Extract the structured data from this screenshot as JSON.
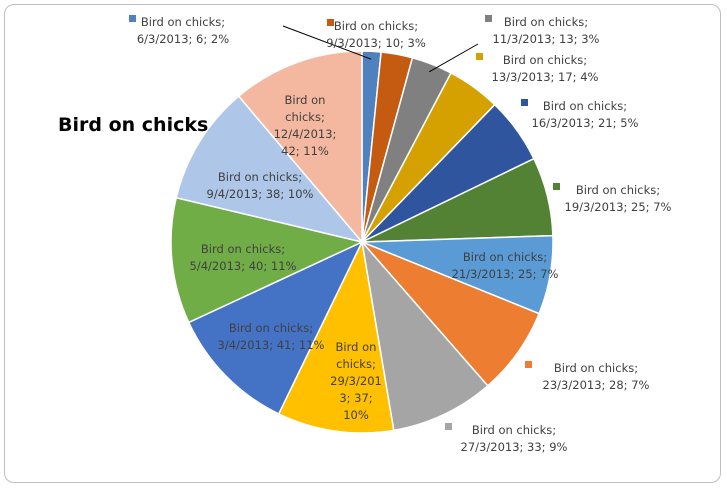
{
  "chart_data": {
    "type": "pie",
    "title": "Bird on chicks",
    "series_name": "Bird on chicks",
    "legend": "none",
    "slices": [
      {
        "category": "6/3/2013",
        "value": 6,
        "percent": "2%",
        "color": "#4e81bd",
        "lines": [
          "Bird on chicks;",
          "6/3/2013; 6; 2%"
        ]
      },
      {
        "category": "9/3/2013",
        "value": 10,
        "percent": "3%",
        "color": "#c55a11",
        "lines": [
          "Bird on chicks;",
          "9/3/2013; 10; 3%"
        ]
      },
      {
        "category": "11/3/2013",
        "value": 13,
        "percent": "3%",
        "color": "#808080",
        "lines": [
          "Bird on chicks;",
          "11/3/2013; 13; 3%"
        ]
      },
      {
        "category": "13/3/2013",
        "value": 17,
        "percent": "4%",
        "color": "#d4a100",
        "lines": [
          "Bird on chicks;",
          "13/3/2013; 17; 4%"
        ]
      },
      {
        "category": "16/3/2013",
        "value": 21,
        "percent": "5%",
        "color": "#2f559e",
        "lines": [
          "Bird on chicks;",
          "16/3/2013; 21; 5%"
        ]
      },
      {
        "category": "19/3/2013",
        "value": 25,
        "percent": "7%",
        "color": "#548235",
        "lines": [
          "Bird on chicks;",
          "19/3/2013; 25; 7%"
        ]
      },
      {
        "category": "21/3/2013",
        "value": 25,
        "percent": "7%",
        "color": "#5b9bd5",
        "lines": [
          "Bird on chicks;",
          "21/3/2013; 25; 7%"
        ]
      },
      {
        "category": "23/3/2013",
        "value": 28,
        "percent": "7%",
        "color": "#ed7d31",
        "lines": [
          "Bird on chicks;",
          "23/3/2013; 28; 7%"
        ]
      },
      {
        "category": "27/3/2013",
        "value": 33,
        "percent": "9%",
        "color": "#a5a5a5",
        "lines": [
          "Bird on chicks;",
          "27/3/2013; 33; 9%"
        ]
      },
      {
        "category": "29/3/2013",
        "value": 37,
        "percent": "10%",
        "color": "#ffc000",
        "lines": [
          "Bird on",
          "chicks;",
          "29/3/201",
          "3; 37;",
          "10%"
        ]
      },
      {
        "category": "3/4/2013",
        "value": 41,
        "percent": "11%",
        "color": "#4472c4",
        "lines": [
          "Bird on chicks;",
          "3/4/2013; 41; 11%"
        ]
      },
      {
        "category": "5/4/2013",
        "value": 40,
        "percent": "11%",
        "color": "#70ad47",
        "lines": [
          "Bird on chicks;",
          "5/4/2013; 40; 11%"
        ]
      },
      {
        "category": "9/4/2013",
        "value": 38,
        "percent": "10%",
        "color": "#aec7e8",
        "lines": [
          "Bird on chicks;",
          "9/4/2013; 38; 10%"
        ]
      },
      {
        "category": "12/4/2013",
        "value": 42,
        "percent": "11%",
        "color": "#f4b8a0",
        "lines": [
          "Bird on",
          "chicks;",
          "12/4/2013;",
          "42; 11%"
        ]
      }
    ]
  }
}
